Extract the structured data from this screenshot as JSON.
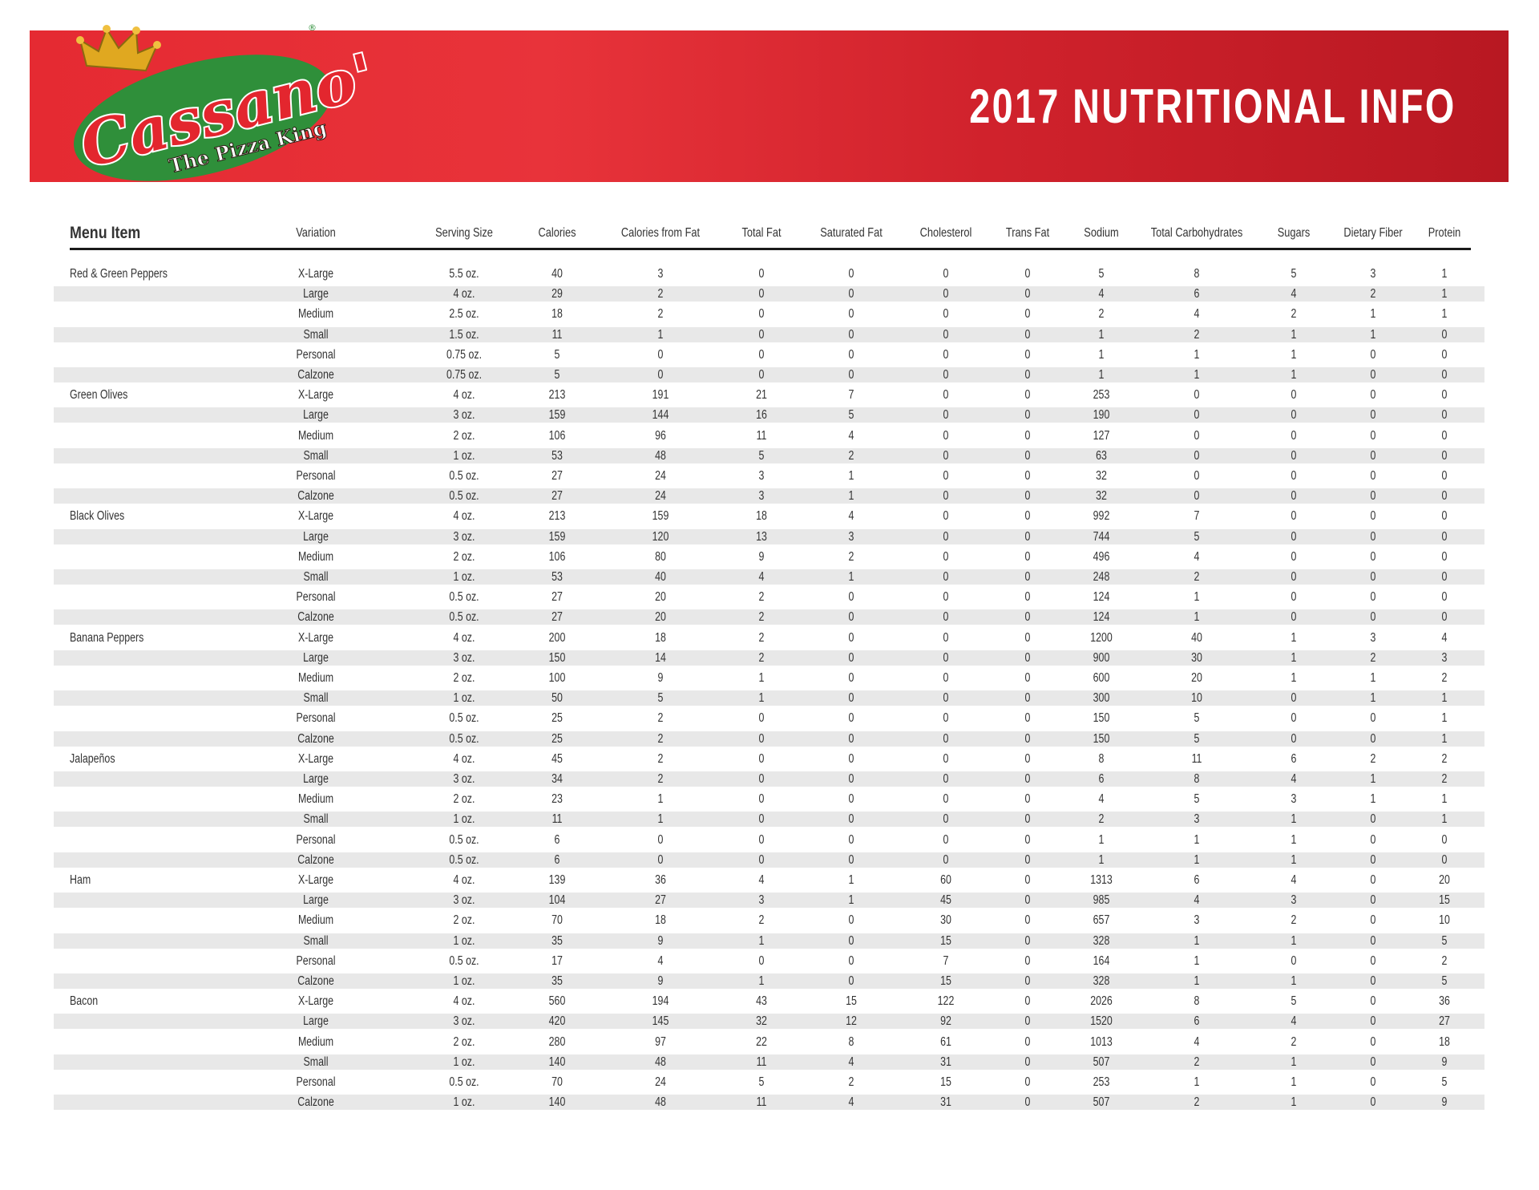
{
  "header": {
    "title": "2017 NUTRITIONAL INFO",
    "brand_color": "#e52a32",
    "logo": {
      "name": "Cassano's",
      "tagline": "The Pizza King",
      "registered": "®"
    }
  },
  "table": {
    "columns": [
      "Menu Item",
      "Variation",
      "Serving Size",
      "Calories",
      "Calories from Fat",
      "Total Fat",
      "Saturated Fat",
      "Cholesterol",
      "Trans Fat",
      "Sodium",
      "Total Carbohydrates",
      "Sugars",
      "Dietary Fiber",
      "Protein"
    ],
    "items": [
      {
        "name": "Red & Green Peppers",
        "rows": [
          [
            "X-Large",
            "5.5 oz.",
            "40",
            "3",
            "0",
            "0",
            "0",
            "0",
            "5",
            "8",
            "5",
            "3",
            "1"
          ],
          [
            "Large",
            "4 oz.",
            "29",
            "2",
            "0",
            "0",
            "0",
            "0",
            "4",
            "6",
            "4",
            "2",
            "1"
          ],
          [
            "Medium",
            "2.5 oz.",
            "18",
            "2",
            "0",
            "0",
            "0",
            "0",
            "2",
            "4",
            "2",
            "1",
            "1"
          ],
          [
            "Small",
            "1.5 oz.",
            "11",
            "1",
            "0",
            "0",
            "0",
            "0",
            "1",
            "2",
            "1",
            "1",
            "0"
          ],
          [
            "Personal",
            "0.75 oz.",
            "5",
            "0",
            "0",
            "0",
            "0",
            "0",
            "1",
            "1",
            "1",
            "0",
            "0"
          ],
          [
            "Calzone",
            "0.75 oz.",
            "5",
            "0",
            "0",
            "0",
            "0",
            "0",
            "1",
            "1",
            "1",
            "0",
            "0"
          ]
        ]
      },
      {
        "name": "Green Olives",
        "rows": [
          [
            "X-Large",
            "4 oz.",
            "213",
            "191",
            "21",
            "7",
            "0",
            "0",
            "253",
            "0",
            "0",
            "0",
            "0"
          ],
          [
            "Large",
            "3 oz.",
            "159",
            "144",
            "16",
            "5",
            "0",
            "0",
            "190",
            "0",
            "0",
            "0",
            "0"
          ],
          [
            "Medium",
            "2 oz.",
            "106",
            "96",
            "11",
            "4",
            "0",
            "0",
            "127",
            "0",
            "0",
            "0",
            "0"
          ],
          [
            "Small",
            "1 oz.",
            "53",
            "48",
            "5",
            "2",
            "0",
            "0",
            "63",
            "0",
            "0",
            "0",
            "0"
          ],
          [
            "Personal",
            "0.5 oz.",
            "27",
            "24",
            "3",
            "1",
            "0",
            "0",
            "32",
            "0",
            "0",
            "0",
            "0"
          ],
          [
            "Calzone",
            "0.5 oz.",
            "27",
            "24",
            "3",
            "1",
            "0",
            "0",
            "32",
            "0",
            "0",
            "0",
            "0"
          ]
        ]
      },
      {
        "name": "Black Olives",
        "rows": [
          [
            "X-Large",
            "4 oz.",
            "213",
            "159",
            "18",
            "4",
            "0",
            "0",
            "992",
            "7",
            "0",
            "0",
            "0"
          ],
          [
            "Large",
            "3 oz.",
            "159",
            "120",
            "13",
            "3",
            "0",
            "0",
            "744",
            "5",
            "0",
            "0",
            "0"
          ],
          [
            "Medium",
            "2 oz.",
            "106",
            "80",
            "9",
            "2",
            "0",
            "0",
            "496",
            "4",
            "0",
            "0",
            "0"
          ],
          [
            "Small",
            "1 oz.",
            "53",
            "40",
            "4",
            "1",
            "0",
            "0",
            "248",
            "2",
            "0",
            "0",
            "0"
          ],
          [
            "Personal",
            "0.5 oz.",
            "27",
            "20",
            "2",
            "0",
            "0",
            "0",
            "124",
            "1",
            "0",
            "0",
            "0"
          ],
          [
            "Calzone",
            "0.5 oz.",
            "27",
            "20",
            "2",
            "0",
            "0",
            "0",
            "124",
            "1",
            "0",
            "0",
            "0"
          ]
        ]
      },
      {
        "name": "Banana Peppers",
        "rows": [
          [
            "X-Large",
            "4 oz.",
            "200",
            "18",
            "2",
            "0",
            "0",
            "0",
            "1200",
            "40",
            "1",
            "3",
            "4"
          ],
          [
            "Large",
            "3 oz.",
            "150",
            "14",
            "2",
            "0",
            "0",
            "0",
            "900",
            "30",
            "1",
            "2",
            "3"
          ],
          [
            "Medium",
            "2 oz.",
            "100",
            "9",
            "1",
            "0",
            "0",
            "0",
            "600",
            "20",
            "1",
            "1",
            "2"
          ],
          [
            "Small",
            "1 oz.",
            "50",
            "5",
            "1",
            "0",
            "0",
            "0",
            "300",
            "10",
            "0",
            "1",
            "1"
          ],
          [
            "Personal",
            "0.5 oz.",
            "25",
            "2",
            "0",
            "0",
            "0",
            "0",
            "150",
            "5",
            "0",
            "0",
            "1"
          ],
          [
            "Calzone",
            "0.5 oz.",
            "25",
            "2",
            "0",
            "0",
            "0",
            "0",
            "150",
            "5",
            "0",
            "0",
            "1"
          ]
        ]
      },
      {
        "name": "Jalapeños",
        "rows": [
          [
            "X-Large",
            "4 oz.",
            "45",
            "2",
            "0",
            "0",
            "0",
            "0",
            "8",
            "11",
            "6",
            "2",
            "2"
          ],
          [
            "Large",
            "3 oz.",
            "34",
            "2",
            "0",
            "0",
            "0",
            "0",
            "6",
            "8",
            "4",
            "1",
            "2"
          ],
          [
            "Medium",
            "2 oz.",
            "23",
            "1",
            "0",
            "0",
            "0",
            "0",
            "4",
            "5",
            "3",
            "1",
            "1"
          ],
          [
            "Small",
            "1 oz.",
            "11",
            "1",
            "0",
            "0",
            "0",
            "0",
            "2",
            "3",
            "1",
            "0",
            "1"
          ],
          [
            "Personal",
            "0.5 oz.",
            "6",
            "0",
            "0",
            "0",
            "0",
            "0",
            "1",
            "1",
            "1",
            "0",
            "0"
          ],
          [
            "Calzone",
            "0.5 oz.",
            "6",
            "0",
            "0",
            "0",
            "0",
            "0",
            "1",
            "1",
            "1",
            "0",
            "0"
          ]
        ]
      },
      {
        "name": "Ham",
        "rows": [
          [
            "X-Large",
            "4 oz.",
            "139",
            "36",
            "4",
            "1",
            "60",
            "0",
            "1313",
            "6",
            "4",
            "0",
            "20"
          ],
          [
            "Large",
            "3 oz.",
            "104",
            "27",
            "3",
            "1",
            "45",
            "0",
            "985",
            "4",
            "3",
            "0",
            "15"
          ],
          [
            "Medium",
            "2 oz.",
            "70",
            "18",
            "2",
            "0",
            "30",
            "0",
            "657",
            "3",
            "2",
            "0",
            "10"
          ],
          [
            "Small",
            "1 oz.",
            "35",
            "9",
            "1",
            "0",
            "15",
            "0",
            "328",
            "1",
            "1",
            "0",
            "5"
          ],
          [
            "Personal",
            "0.5 oz.",
            "17",
            "4",
            "0",
            "0",
            "7",
            "0",
            "164",
            "1",
            "0",
            "0",
            "2"
          ],
          [
            "Calzone",
            "1 oz.",
            "35",
            "9",
            "1",
            "0",
            "15",
            "0",
            "328",
            "1",
            "1",
            "0",
            "5"
          ]
        ]
      },
      {
        "name": "Bacon",
        "rows": [
          [
            "X-Large",
            "4 oz.",
            "560",
            "194",
            "43",
            "15",
            "122",
            "0",
            "2026",
            "8",
            "5",
            "0",
            "36"
          ],
          [
            "Large",
            "3 oz.",
            "420",
            "145",
            "32",
            "12",
            "92",
            "0",
            "1520",
            "6",
            "4",
            "0",
            "27"
          ],
          [
            "Medium",
            "2 oz.",
            "280",
            "97",
            "22",
            "8",
            "61",
            "0",
            "1013",
            "4",
            "2",
            "0",
            "18"
          ],
          [
            "Small",
            "1 oz.",
            "140",
            "48",
            "11",
            "4",
            "31",
            "0",
            "507",
            "2",
            "1",
            "0",
            "9"
          ],
          [
            "Personal",
            "0.5 oz.",
            "70",
            "24",
            "5",
            "2",
            "15",
            "0",
            "253",
            "1",
            "1",
            "0",
            "5"
          ],
          [
            "Calzone",
            "1 oz.",
            "140",
            "48",
            "11",
            "4",
            "31",
            "0",
            "507",
            "2",
            "1",
            "0",
            "9"
          ]
        ]
      }
    ]
  }
}
